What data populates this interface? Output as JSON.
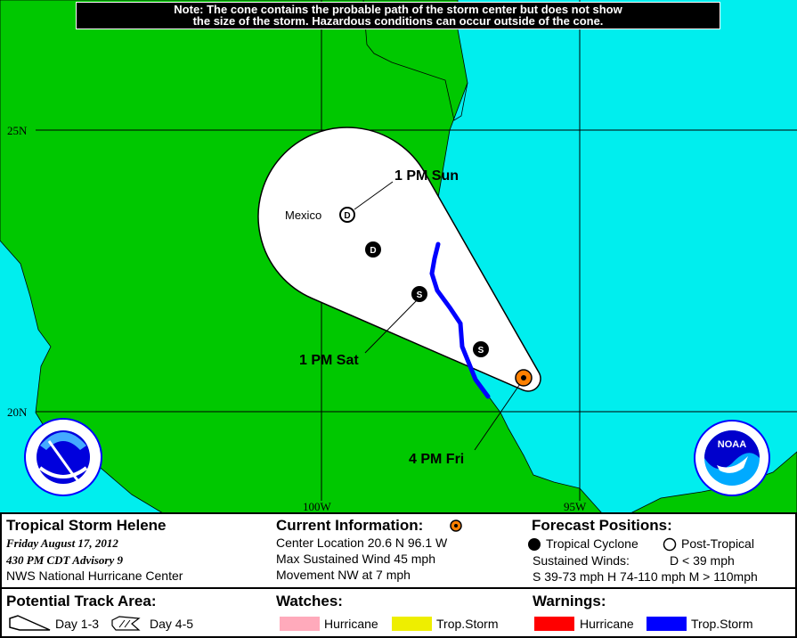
{
  "note": {
    "line1": "Note: The cone contains the probable path of the storm center but does not show",
    "line2": "the size of the storm. Hazardous conditions can occur outside of the cone."
  },
  "map": {
    "grid_labels": {
      "lat25": "25N",
      "lat20": "20N",
      "lon100": "100W",
      "lon95": "95W"
    },
    "place_label": "Mexico",
    "colors": {
      "land": "#00c800",
      "water": "#00eeee",
      "cone": "#ffffff",
      "warning_trop_storm": "#0000ff",
      "current_marker": "#ff8000"
    },
    "forecast_points": [
      {
        "label": "4 PM Fri",
        "type": "current"
      },
      {
        "label": "",
        "type": "S"
      },
      {
        "label": "1 PM Sat",
        "type": "S"
      },
      {
        "label": "",
        "type": "D"
      },
      {
        "label": "1 PM Sun",
        "type": "D-post-tropical"
      }
    ],
    "logos": {
      "nws": "NATIONAL WEATHER SERVICE",
      "noaa": "NOAA"
    }
  },
  "legend": {
    "storm_title": "Tropical Storm Helene",
    "date": "Friday    August 17, 2012",
    "advisory": "430 PM CDT Advisory 9",
    "center": "NWS National Hurricane Center",
    "current_title": "Current Information:",
    "center_location": "Center Location 20.6 N  96.1 W",
    "max_wind": "Max Sustained Wind  45 mph",
    "movement": "Movement NW at  7 mph",
    "forecast_title": "Forecast Positions:",
    "tropical_cyclone": "Tropical Cyclone",
    "post_tropical": "Post-Tropical",
    "sustained_winds": "Sustained Winds:",
    "d_range": "D  < 39 mph",
    "s_h_m": "S  39-73 mph  H  74-110 mph  M  > 110mph",
    "track_title": "Potential Track Area:",
    "day13": "Day 1-3",
    "day45": "Day 4-5",
    "watches_title": "Watches:",
    "watch_hurricane": "Hurricane",
    "watch_ts": "Trop.Storm",
    "warnings_title": "Warnings:",
    "warn_hurricane": "Hurricane",
    "warn_ts": "Trop.Storm",
    "colors": {
      "watch_hurricane": "#ffaabb",
      "watch_ts": "#eeee00",
      "warn_hurricane": "#ff0000",
      "warn_ts": "#0000ff"
    }
  }
}
